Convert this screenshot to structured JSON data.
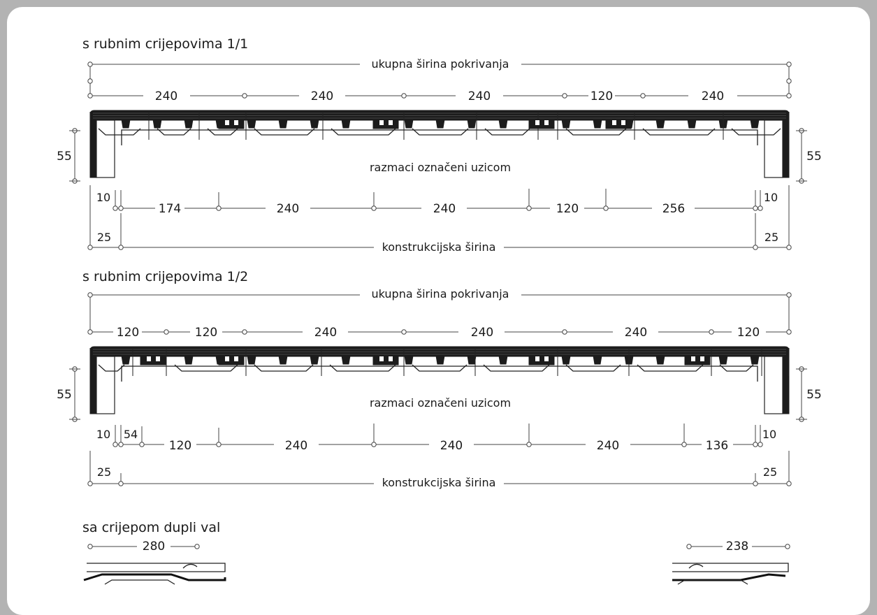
{
  "sections": [
    {
      "heading": "s rubnim crijepovima 1/1",
      "total_label": "ukupna širina pokrivanja",
      "spacing_label": "razmaci označeni uzicom",
      "construction_label": "konstrukcijska širina",
      "side_height": "55",
      "top_dims": [
        "240",
        "240",
        "240",
        "120",
        "240"
      ],
      "bottom_dims": [
        "174",
        "240",
        "240",
        "120",
        "256"
      ],
      "edge_small": "10",
      "edge_large": "25"
    },
    {
      "heading": "s rubnim crijepovima 1/2",
      "total_label": "ukupna širina pokrivanja",
      "spacing_label": "razmaci označeni uzicom",
      "construction_label": "konstrukcijska širina",
      "side_height": "55",
      "top_dims": [
        "120",
        "120",
        "240",
        "240",
        "240",
        "120"
      ],
      "bottom_dims": [
        "54",
        "120",
        "240",
        "240",
        "240",
        "136"
      ],
      "edge_small": "10",
      "edge_large": "25"
    }
  ],
  "double_wave": {
    "heading": "sa crijepom dupli val",
    "left_dim": "280",
    "right_dim": "238"
  }
}
